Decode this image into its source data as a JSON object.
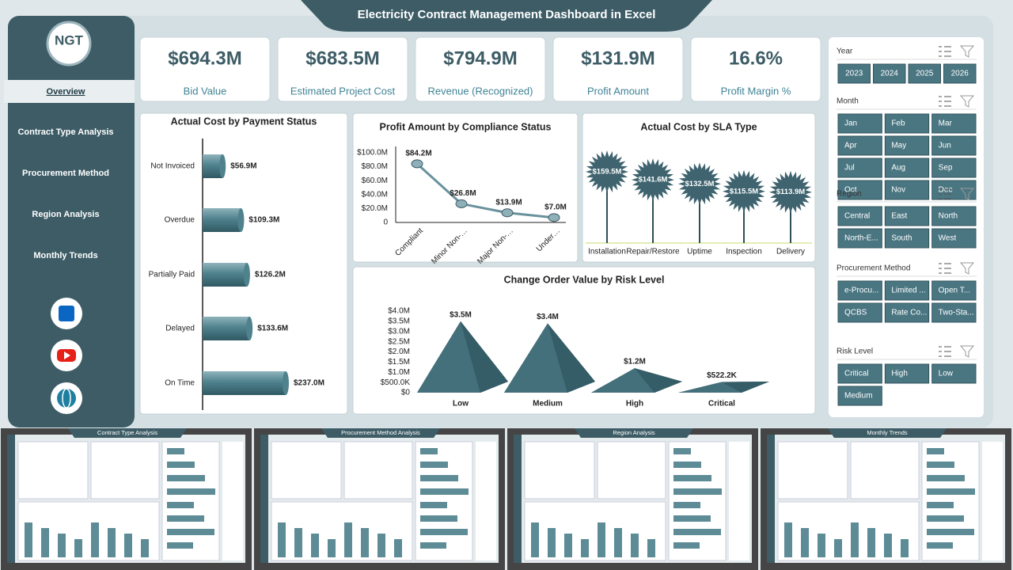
{
  "title": "Electricity Contract Management Dashboard  in Excel",
  "logo": "NGT",
  "nav": [
    "Overview",
    "Contract Type Analysis",
    "Procurement Method",
    "Region Analysis",
    "Monthly Trends"
  ],
  "kpis": [
    {
      "value": "$694.3M",
      "label": "Bid Value"
    },
    {
      "value": "$683.5M",
      "label": "Estimated Project Cost"
    },
    {
      "value": "$794.9M",
      "label": "Revenue (Recognized)"
    },
    {
      "value": "$131.9M",
      "label": "Profit Amount"
    },
    {
      "value": "16.6%",
      "label": "Profit Margin %"
    }
  ],
  "slicers": [
    {
      "title": "Year",
      "items": [
        "2023",
        "2024",
        "2025",
        "2026"
      ]
    },
    {
      "title": "Month",
      "items": [
        "Jan",
        "Feb",
        "Mar",
        "Apr",
        "May",
        "Jun",
        "Jul",
        "Aug",
        "Sep",
        "Oct",
        "Nov",
        "Dec"
      ]
    },
    {
      "title": "Region",
      "items": [
        "Central",
        "East",
        "North",
        "North-E...",
        "South",
        "West"
      ]
    },
    {
      "title": "Procurement Method",
      "items": [
        "e-Procu...",
        "Limited ...",
        "Open T...",
        "QCBS",
        "Rate Co...",
        "Two-Sta..."
      ]
    },
    {
      "title": "Risk Level",
      "items": [
        "Critical",
        "High",
        "Low",
        "Medium"
      ]
    }
  ],
  "thumbnails": [
    "Contract Type Analysis",
    "Procurement Method Analysis",
    "Region Analysis",
    "Monthly Trends"
  ],
  "chart_data": [
    {
      "type": "hbar",
      "title": "Actual Cost by Payment Status",
      "color": "#4f828d",
      "categories": [
        "Not Invoiced",
        "Overdue",
        "Partially Paid",
        "Delayed",
        "On Time"
      ],
      "values": [
        56.9,
        109.3,
        126.2,
        133.6,
        237.0
      ],
      "value_labels": [
        "$56.9M",
        "$109.3M",
        "$126.2M",
        "$133.6M",
        "$237.0M"
      ]
    },
    {
      "type": "line",
      "title": "Profit Amount by Compliance Status",
      "color": "#6a929c",
      "categories": [
        "Compliant",
        "Minor Non-…",
        "Major Non-…",
        "Under…"
      ],
      "values": [
        84.2,
        26.8,
        13.9,
        7.0
      ],
      "value_labels": [
        "$84.2M",
        "$26.8M",
        "$13.9M",
        "$7.0M"
      ],
      "ylim": [
        0,
        100
      ],
      "yticks": [
        0,
        {
          "value": 20,
          "label": "$20.0M"
        },
        {
          "value": 40,
          "label": "$40.0M"
        },
        {
          "value": 60,
          "label": "$60.0M"
        },
        {
          "value": 80,
          "label": "$80.0M"
        },
        {
          "value": 100,
          "label": "$100.0M"
        }
      ]
    },
    {
      "type": "lollipop",
      "title": "Actual Cost by SLA Type",
      "color": "#3f6470",
      "categories": [
        "Installation",
        "Repair/Restore",
        "Uptime",
        "Inspection",
        "Delivery"
      ],
      "values": [
        159.5,
        141.6,
        132.5,
        115.5,
        113.9
      ],
      "value_labels": [
        "$159.5M",
        "$141.6M",
        "$132.5M",
        "$115.5M",
        "$113.9M"
      ]
    },
    {
      "type": "pyramid",
      "title": "Change Order Value by Risk Level",
      "color": "#44707b",
      "categories": [
        "Low",
        "Medium",
        "High",
        "Critical"
      ],
      "values": [
        3.5,
        3.4,
        1.2,
        0.5222
      ],
      "value_labels": [
        "$3.5M",
        "$3.4M",
        "$1.2M",
        "$522.2K"
      ],
      "ylim": [
        0,
        4
      ],
      "yticks": [
        {
          "value": 0,
          "label": "$0"
        },
        {
          "value": 0.5,
          "label": "$500.0K"
        },
        {
          "value": 1,
          "label": "$1.0M"
        },
        {
          "value": 1.5,
          "label": "$1.5M"
        },
        {
          "value": 2,
          "label": "$2.0M"
        },
        {
          "value": 2.5,
          "label": "$2.5M"
        },
        {
          "value": 3,
          "label": "$3.0M"
        },
        {
          "value": 3.5,
          "label": "$3.5M"
        },
        {
          "value": 4,
          "label": "$4.0M"
        }
      ]
    }
  ]
}
